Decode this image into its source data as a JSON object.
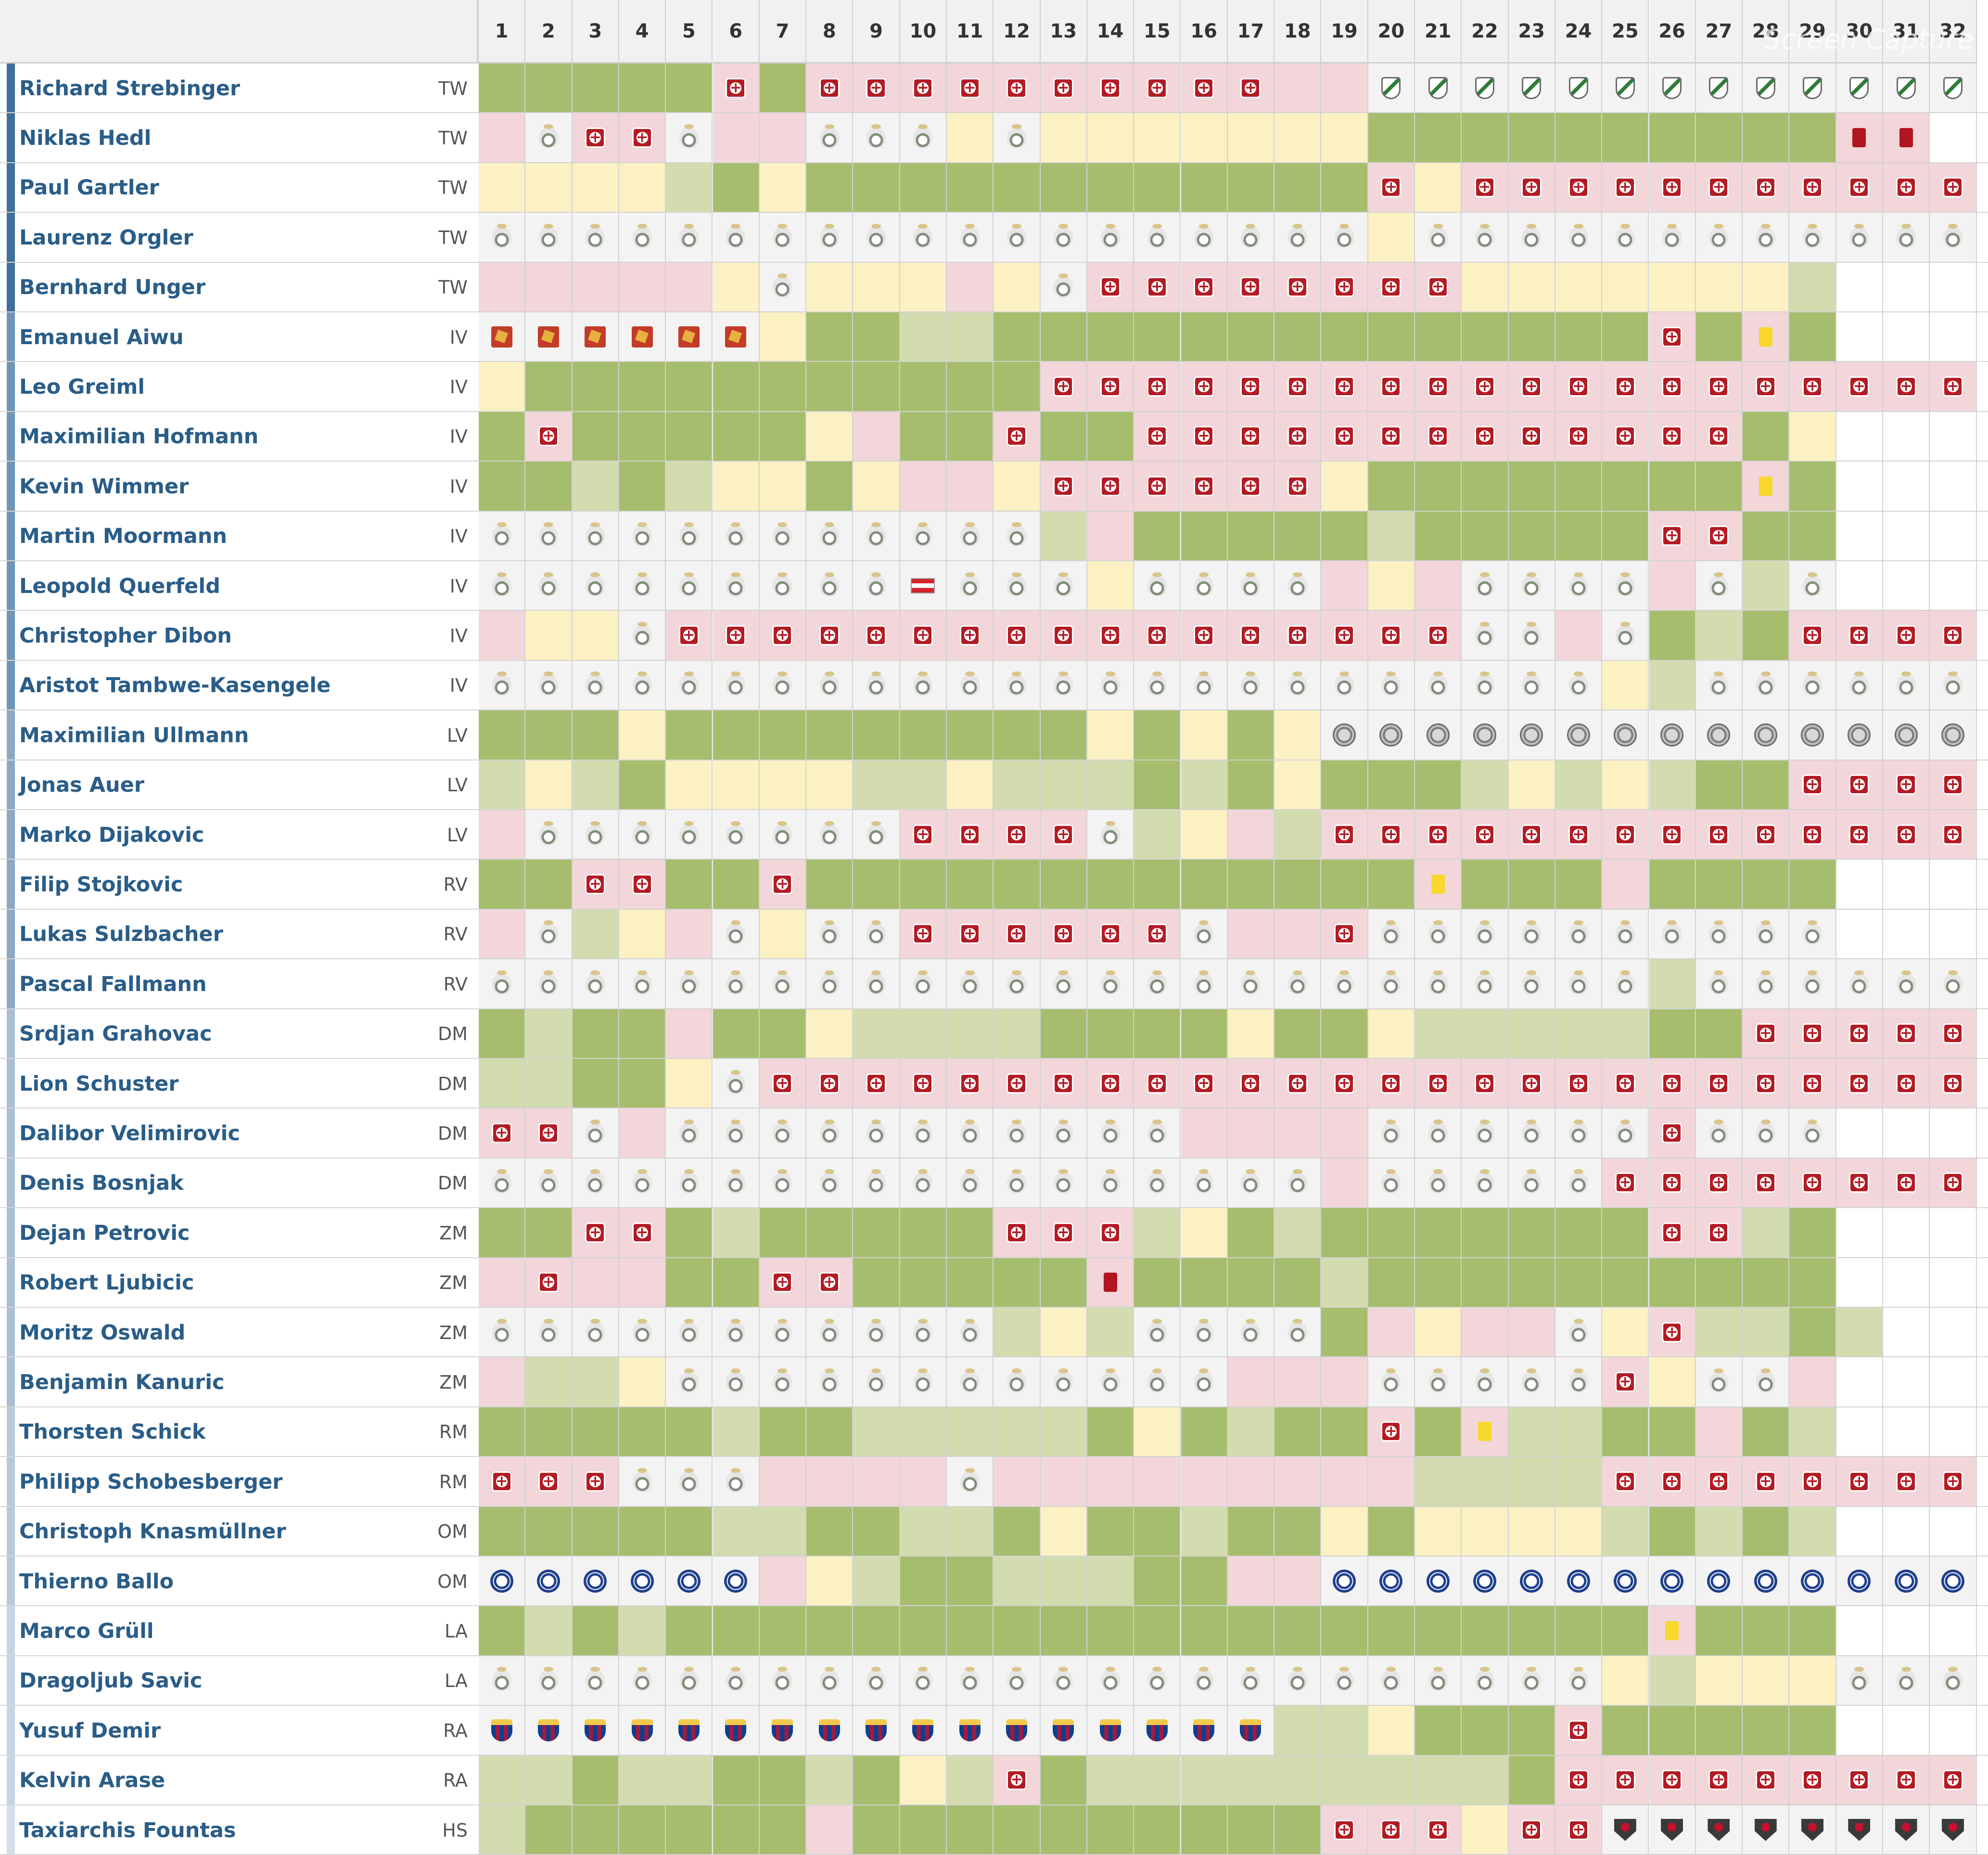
{
  "watermark": "Screen Capture",
  "colors": {
    "green": "#a6bd6e",
    "light_green": "#d3dcaf",
    "yellow": "#fbf1c3",
    "pink": "#f2d6da",
    "grey": "#f3f3f3",
    "name_blue": "#2a5d88"
  },
  "legend_codes": {
    "G": "green cell (played)",
    "g": "light green cell (substitute)",
    "Y": "yellow cell (bench)",
    "P": "pink cell (not in squad)",
    "i": "injury-icon",
    "r": "club-crest-icon",
    "R": "red-card-icon",
    "y": "yellow-card-icon",
    "L": "green-shield-crest-icon",
    "S": "red-club-crest-icon",
    "F": "austria-flag-icon",
    "C": "grey-coin-crest-icon",
    "H": "chelsea-crest-icon",
    "B": "barcelona-crest-icon",
    "D": "dc-united-crest-icon",
    "E": "empty cell"
  },
  "matchdays": [
    "1",
    "2",
    "3",
    "4",
    "5",
    "6",
    "7",
    "8",
    "9",
    "10",
    "11",
    "12",
    "13",
    "14",
    "15",
    "16",
    "17",
    "18",
    "19",
    "20",
    "21",
    "22",
    "23",
    "24",
    "25",
    "26",
    "27",
    "28",
    "29",
    "30",
    "31",
    "32"
  ],
  "players": [
    {
      "name": "Richard Strebinger",
      "pos": "TW",
      "cells": "GGGGGiGiiiiiiiiiiPPLLLLLLLLLLLLL"
    },
    {
      "name": "Niklas Hedl",
      "pos": "TW",
      "cells": "PriirPPrrrYrYYYYYYYGGGGGGGGGGRRE"
    },
    {
      "name": "Paul Gartler",
      "pos": "TW",
      "cells": "YYYYgGYGGGGGGGGGGGGiYiiiiiiiiiii"
    },
    {
      "name": "Laurenz Orgler",
      "pos": "TW",
      "cells": "rrrrrrrrrrrrrrrrrrrYrrrrrrrrrrrr"
    },
    {
      "name": "Bernhard Unger",
      "pos": "TW",
      "cells": "PPPPPYrYYYPYriiiiiiiiYYYYYYYgEEE"
    },
    {
      "name": "Emanuel Aiwu",
      "pos": "IV",
      "cells": "SSSSSSYGGggGGGGGGGGGGGGGGiGyGEEE"
    },
    {
      "name": "Leo Greiml",
      "pos": "IV",
      "cells": "YGGGGGGGGGGGiiiiiiiiiiiiiiiiiiii"
    },
    {
      "name": "Maximilian Hofmann",
      "pos": "IV",
      "cells": "GiGGGGGYPGGiGGiiiiiiiiiiiiiGYEEE"
    },
    {
      "name": "Kevin Wimmer",
      "pos": "IV",
      "cells": "GGgGgYYGYPPYiiiiiiYGGGGGGGGyGEEE"
    },
    {
      "name": "Martin Moormann",
      "pos": "IV",
      "cells": "rrrrrrrrrrrrgPGGGGGgGGGGGiiGGEEE"
    },
    {
      "name": "Leopold Querfeld",
      "pos": "IV",
      "cells": "rrrrrrrrrFrrrYrrrrPYPrrrrPrgrEEE"
    },
    {
      "name": "Christopher Dibon",
      "pos": "IV",
      "cells": "PYYriiiiiiiiiiiiiiiiirrPrGgGiiii"
    },
    {
      "name": "Aristot Tambwe-Kasengele",
      "pos": "IV",
      "cells": "rrrrrrrrrrrrrrrrrrrrrrrrYgrrrrrr"
    },
    {
      "name": "Maximilian Ullmann",
      "pos": "LV",
      "cells": "GGGYGGGGGGGGGYGYGYCCCCCCCCCCCCCC"
    },
    {
      "name": "Jonas Auer",
      "pos": "LV",
      "cells": "gYgGYYYYggYgggGgGYGGGgYgYgGGiiii"
    },
    {
      "name": "Marko Dijakovic",
      "pos": "LV",
      "cells": "PrrrrrrrriiiirgYPgiiiiiiiiiiiiii"
    },
    {
      "name": "Filip Stojkovic",
      "pos": "RV",
      "cells": "GGiiGGiGGGGGGGGGGGGGyGGGPGGGGEEE"
    },
    {
      "name": "Lukas Sulzbacher",
      "pos": "RV",
      "cells": "PrgYPrYrriiiiiirPPirrrrrrrrrrEEE"
    },
    {
      "name": "Pascal Fallmann",
      "pos": "RV",
      "cells": "rrrrrrrrrrrrrrrrrrrrrrrrrgrrrrrr"
    },
    {
      "name": "Srdjan Grahovac",
      "pos": "DM",
      "cells": "GgGGPGGYggggGGGGYGGYgggggGGiiiii"
    },
    {
      "name": "Lion Schuster",
      "pos": "DM",
      "cells": "ggGGYriiiiiiiiiiiiiiiiiiiiiiiiii"
    },
    {
      "name": "Dalibor Velimirovic",
      "pos": "DM",
      "cells": "iirPrrrrrrrrrrrPPPPrrrrrrirrrEEE"
    },
    {
      "name": "Denis Bosnjak",
      "pos": "DM",
      "cells": "rrrrrrrrrrrrrrrrrrPrrrrriiiiiiii"
    },
    {
      "name": "Dejan Petrovic",
      "pos": "ZM",
      "cells": "GGiiGgGGGGGiiigYGgGGGGGGGiigGEEE"
    },
    {
      "name": "Robert Ljubicic",
      "pos": "ZM",
      "cells": "PiPPGGiiGGGGGRGGGGgGGGGGGGGGGEEE"
    },
    {
      "name": "Moritz Oswald",
      "pos": "ZM",
      "cells": "rrrrrrrrrrrgYgrrrrGPYPPrYiggGgEE"
    },
    {
      "name": "Benjamin Kanuric",
      "pos": "ZM",
      "cells": "PggYrrrrrrrrrrrrPPPrrrrriYrrPEEE"
    },
    {
      "name": "Thorsten Schick",
      "pos": "RM",
      "cells": "GGGGGgGGgggggGYGgGGiGyggGGPGgEEE"
    },
    {
      "name": "Philipp Schobesberger",
      "pos": "RM",
      "cells": "iiirrrPPPPrPPPPPPPPPggggiiiiiiii"
    },
    {
      "name": "Christoph Knasmüllner",
      "pos": "OM",
      "cells": "GGGGGggGGggGYGGgGGYGYYYYgGgGgEEE"
    },
    {
      "name": "Thierno Ballo",
      "pos": "OM",
      "cells": "HHHHHHPYgGGgggGGPPHHHHHHHHHHHHHH"
    },
    {
      "name": "Marco Grüll",
      "pos": "LA",
      "cells": "GgGgGGGGGGGGGGGGGGGGGGGGGyGGGEEE"
    },
    {
      "name": "Dragoljub Savic",
      "pos": "LA",
      "cells": "rrrrrrrrrrrrrrrrrrrrrrrrYgYYYrrr"
    },
    {
      "name": "Yusuf Demir",
      "pos": "RA",
      "cells": "BBBBBBBBBBBBBBBBBggYGGGiGGGGGEEE"
    },
    {
      "name": "Kelvin Arase",
      "pos": "RA",
      "cells": "ggGggGGgGYgiGgggggggggGiiiiiiiii"
    },
    {
      "name": "Taxiarchis Fountas",
      "pos": "HS",
      "cells": "gGGGGGGPGGGGGGGGGGiiiYiiDDDDDDDD"
    }
  ]
}
